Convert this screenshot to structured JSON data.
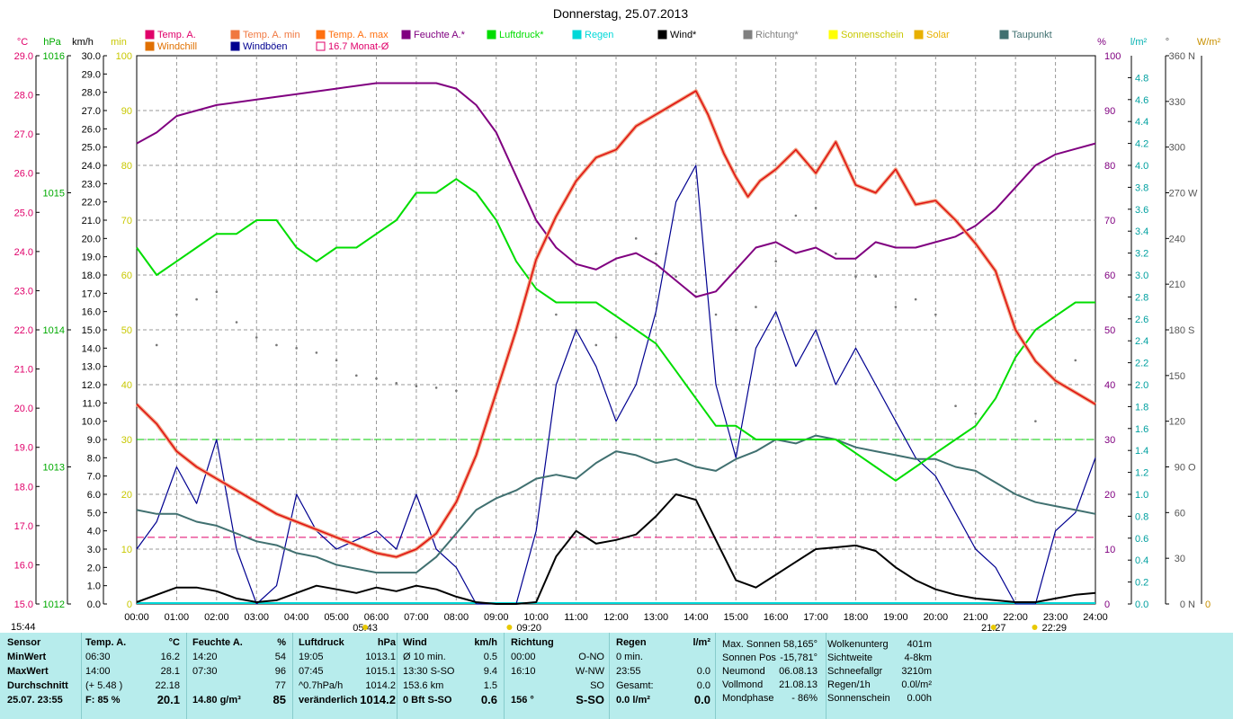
{
  "title": "Donnerstag, 25.07.2013",
  "legend": [
    {
      "label": "Temp. A.",
      "color": "#e0006a"
    },
    {
      "label": "Windchill",
      "color": "#e07000"
    },
    {
      "label": "Temp. A. min",
      "color": "#f07840"
    },
    {
      "label": "Windböen",
      "color": "#000090"
    },
    {
      "label": "Temp. A. max",
      "color": "#ff7010"
    },
    {
      "label": "16.7 Monat-Ø",
      "color": "#e0006a"
    },
    {
      "label": "Feuchte A.*",
      "color": "#800080"
    },
    {
      "label": "Luftdruck*",
      "color": "#00dd00"
    },
    {
      "label": "Regen",
      "color": "#00d8d8"
    },
    {
      "label": "Wind*",
      "color": "#000000"
    },
    {
      "label": "Richtung*",
      "color": "#808080"
    },
    {
      "label": "Sonnenschein",
      "color": "#ffff00"
    },
    {
      "label": "Solar",
      "color": "#e8b000"
    },
    {
      "label": "Taupunkt",
      "color": "#407070"
    }
  ],
  "axes": {
    "temp_unit": "°C",
    "press_unit": "hPa",
    "wind_unit": "km/h",
    "min_unit": "min",
    "hum_unit": "%",
    "rain_unit": "l/m²",
    "dir_unit": "°",
    "solar_unit": "W/m²",
    "temp_ticks": [
      "15.0",
      "16.0",
      "17.0",
      "18.0",
      "19.0",
      "20.0",
      "21.0",
      "22.0",
      "23.0",
      "24.0",
      "25.0",
      "26.0",
      "27.0",
      "28.0",
      "29.0"
    ],
    "press_ticks": [
      "1012",
      "1013",
      "1014",
      "1015",
      "1016"
    ],
    "wind_ticks": [
      "0.0",
      "1.0",
      "2.0",
      "3.0",
      "4.0",
      "5.0",
      "6.0",
      "7.0",
      "8.0",
      "9.0",
      "10.0",
      "11.0",
      "12.0",
      "13.0",
      "14.0",
      "15.0",
      "16.0",
      "17.0",
      "18.0",
      "19.0",
      "20.0",
      "21.0",
      "22.0",
      "23.0",
      "24.0",
      "25.0",
      "26.0",
      "27.0",
      "28.0",
      "29.0",
      "30.0"
    ],
    "min_ticks": [
      "0",
      "10",
      "20",
      "30",
      "40",
      "50",
      "60",
      "70",
      "80",
      "90",
      "100"
    ],
    "hum_ticks": [
      "0",
      "10",
      "20",
      "30",
      "40",
      "50",
      "60",
      "70",
      "80",
      "90",
      "100"
    ],
    "rain_ticks": [
      "0.0",
      "0.2",
      "0.4",
      "0.6",
      "0.8",
      "1.0",
      "1.2",
      "1.4",
      "1.6",
      "1.8",
      "2.0",
      "2.2",
      "2.4",
      "2.6",
      "2.8",
      "3.0",
      "3.2",
      "3.4",
      "3.6",
      "3.8",
      "4.0",
      "4.2",
      "4.4",
      "4.6",
      "4.8"
    ],
    "dir_ticks": [
      "0",
      "30",
      "60",
      "90",
      "120",
      "150",
      "180",
      "210",
      "240",
      "270",
      "300",
      "330",
      "360"
    ],
    "dir_labels": [
      "N",
      "",
      "",
      "O",
      "",
      "",
      "S",
      "",
      "",
      "W",
      "",
      "",
      "N"
    ],
    "solar_ticks": [
      "0"
    ],
    "x_ticks": [
      "00:00",
      "01:00",
      "02:00",
      "03:00",
      "04:00",
      "05:00",
      "06:00",
      "07:00",
      "08:00",
      "09:00",
      "10:00",
      "11:00",
      "12:00",
      "13:00",
      "14:00",
      "15:00",
      "16:00",
      "17:00",
      "18:00",
      "19:00",
      "20:00",
      "21:00",
      "22:00",
      "23:00",
      "24:00"
    ]
  },
  "sun_events": {
    "sunrise": "05:43",
    "sunset": "21:27",
    "moonrise": "09:20",
    "moonset": "22:29",
    "time_label": "15:44"
  },
  "chart_data": {
    "type": "line",
    "title": "Donnerstag, 25.07.2013",
    "x_range_hours": [
      0,
      24
    ],
    "series": [
      {
        "name": "Temp. A.",
        "unit": "°C",
        "ylim": [
          15,
          29
        ],
        "x": [
          0,
          0.5,
          1,
          1.5,
          2,
          3,
          3.5,
          4,
          4.5,
          5,
          5.5,
          6,
          6.5,
          7,
          7.5,
          8,
          8.5,
          9,
          9.5,
          10,
          10.5,
          11,
          11.5,
          12,
          12.5,
          13,
          13.5,
          14,
          14.3,
          14.7,
          15,
          15.3,
          15.6,
          16,
          16.5,
          17,
          17.5,
          18,
          18.5,
          19,
          19.5,
          20,
          20.5,
          21,
          21.5,
          22,
          22.5,
          23,
          23.5,
          24
        ],
        "values": [
          20.1,
          19.6,
          18.9,
          18.5,
          18.2,
          17.6,
          17.3,
          17.1,
          16.9,
          16.7,
          16.5,
          16.3,
          16.2,
          16.4,
          16.8,
          17.6,
          18.8,
          20.4,
          22.0,
          23.8,
          24.9,
          25.8,
          26.4,
          26.6,
          27.2,
          27.5,
          27.8,
          28.1,
          27.5,
          26.5,
          25.9,
          25.4,
          25.8,
          26.1,
          26.6,
          26.0,
          26.8,
          25.7,
          25.5,
          26.1,
          25.2,
          25.3,
          24.8,
          24.2,
          23.5,
          22.0,
          21.2,
          20.7,
          20.4,
          20.1
        ]
      },
      {
        "name": "Feuchte A.*",
        "unit": "%",
        "ylim": [
          0,
          100
        ],
        "x": [
          0,
          0.5,
          1,
          1.5,
          2,
          3,
          4,
          5,
          6,
          6.5,
          7,
          7.5,
          8,
          8.5,
          9,
          9.5,
          10,
          10.5,
          11,
          11.5,
          12,
          12.5,
          13,
          13.5,
          14,
          14.5,
          15,
          15.5,
          16,
          16.5,
          17,
          17.5,
          18,
          18.5,
          19,
          19.5,
          20,
          20.5,
          21,
          21.5,
          22,
          22.5,
          23,
          23.5,
          24
        ],
        "values": [
          84,
          86,
          89,
          90,
          91,
          92,
          93,
          94,
          95,
          95,
          95,
          95,
          94,
          91,
          86,
          78,
          70,
          65,
          62,
          61,
          63,
          64,
          62,
          59,
          56,
          57,
          61,
          65,
          66,
          64,
          65,
          63,
          63,
          66,
          65,
          65,
          66,
          67,
          69,
          72,
          76,
          80,
          82,
          83,
          84
        ]
      },
      {
        "name": "Luftdruck*",
        "unit": "hPa",
        "ylim": [
          1012,
          1016
        ],
        "x": [
          0,
          0.5,
          1,
          1.5,
          2,
          2.5,
          3,
          3.5,
          4,
          4.5,
          5,
          5.5,
          6,
          6.5,
          7,
          7.5,
          8,
          8.5,
          9,
          9.5,
          10,
          10.5,
          11,
          11.5,
          12,
          12.5,
          13,
          13.5,
          14,
          14.5,
          15,
          15.5,
          16,
          16.5,
          17,
          17.5,
          18,
          18.5,
          19,
          19.5,
          20,
          20.5,
          21,
          21.5,
          22,
          22.5,
          23,
          23.5,
          24
        ],
        "values": [
          1014.6,
          1014.4,
          1014.5,
          1014.6,
          1014.7,
          1014.7,
          1014.8,
          1014.8,
          1014.6,
          1014.5,
          1014.6,
          1014.6,
          1014.7,
          1014.8,
          1015.0,
          1015.0,
          1015.1,
          1015.0,
          1014.8,
          1014.5,
          1014.3,
          1014.2,
          1014.2,
          1014.2,
          1014.1,
          1014.0,
          1013.9,
          1013.7,
          1013.5,
          1013.3,
          1013.3,
          1013.2,
          1013.2,
          1013.2,
          1013.2,
          1013.2,
          1013.1,
          1013.0,
          1012.9,
          1013.0,
          1013.1,
          1013.2,
          1013.3,
          1013.5,
          1013.8,
          1014.0,
          1014.1,
          1014.2,
          1014.2
        ]
      },
      {
        "name": "Wind*",
        "unit": "km/h",
        "ylim": [
          0,
          30
        ],
        "x": [
          0,
          0.5,
          1,
          1.5,
          2,
          2.5,
          3,
          3.5,
          4,
          4.5,
          5,
          5.5,
          6,
          6.5,
          7,
          7.5,
          8,
          8.5,
          9,
          9.5,
          10,
          10.5,
          11,
          11.5,
          12,
          12.5,
          13,
          13.5,
          14,
          14.5,
          15,
          15.5,
          16,
          16.5,
          17,
          17.5,
          18,
          18.5,
          19,
          19.5,
          20,
          20.5,
          21,
          21.5,
          22,
          22.5,
          23,
          23.5,
          24
        ],
        "values": [
          0.1,
          0.5,
          0.9,
          0.9,
          0.7,
          0.3,
          0.1,
          0.2,
          0.6,
          1.0,
          0.8,
          0.6,
          0.9,
          0.7,
          1.0,
          0.8,
          0.4,
          0.1,
          0.0,
          0.0,
          0.1,
          2.6,
          4.0,
          3.3,
          3.5,
          3.8,
          4.8,
          6.0,
          5.7,
          3.5,
          1.3,
          0.9,
          1.6,
          2.3,
          3.0,
          3.1,
          3.2,
          2.9,
          2.0,
          1.3,
          0.8,
          0.5,
          0.3,
          0.2,
          0.1,
          0.1,
          0.3,
          0.5,
          0.6
        ]
      },
      {
        "name": "Windböen",
        "unit": "km/h",
        "ylim": [
          0,
          30
        ],
        "x": [
          0,
          0.5,
          1,
          1.5,
          2,
          2.5,
          3,
          3.5,
          4,
          4.5,
          5,
          5.5,
          6,
          6.5,
          7,
          7.5,
          8,
          8.5,
          9,
          9.5,
          10,
          10.5,
          11,
          11.5,
          12,
          12.5,
          13,
          13.5,
          14,
          14.5,
          15,
          15.5,
          16,
          16.5,
          17,
          17.5,
          18,
          18.5,
          19,
          19.5,
          20,
          20.5,
          21,
          21.5,
          22,
          22.5,
          23,
          23.5,
          24
        ],
        "values": [
          3.0,
          4.5,
          7.5,
          5.5,
          9.0,
          3.0,
          0.0,
          1.0,
          6.0,
          4.0,
          3.0,
          3.5,
          4.0,
          3.0,
          6.0,
          3.0,
          2.0,
          0.0,
          0.0,
          0.0,
          4.0,
          12.0,
          15.0,
          13.0,
          10.0,
          12.0,
          16.0,
          22.0,
          24.0,
          12.0,
          8.0,
          14.0,
          16.0,
          13.0,
          15.0,
          12.0,
          14.0,
          12.0,
          10.0,
          8.0,
          7.0,
          5.0,
          3.0,
          2.0,
          0.0,
          0.0,
          4.0,
          5.0,
          8.0
        ]
      },
      {
        "name": "Taupunkt",
        "unit": "°C",
        "ylim": [
          15,
          29
        ],
        "x": [
          0,
          0.5,
          1,
          1.5,
          2,
          2.5,
          3,
          3.5,
          4,
          4.5,
          5,
          5.5,
          6,
          6.5,
          7,
          7.5,
          8,
          8.5,
          9,
          9.5,
          10,
          10.5,
          11,
          11.5,
          12,
          12.5,
          13,
          13.5,
          14,
          14.5,
          15,
          15.5,
          16,
          16.5,
          17,
          17.5,
          18,
          18.5,
          19,
          19.5,
          20,
          20.5,
          21,
          21.5,
          22,
          22.5,
          23,
          23.5,
          24
        ],
        "values": [
          17.4,
          17.3,
          17.3,
          17.1,
          17.0,
          16.8,
          16.6,
          16.5,
          16.3,
          16.2,
          16.0,
          15.9,
          15.8,
          15.8,
          15.8,
          16.2,
          16.8,
          17.4,
          17.7,
          17.9,
          18.2,
          18.3,
          18.2,
          18.6,
          18.9,
          18.8,
          18.6,
          18.7,
          18.5,
          18.4,
          18.7,
          18.9,
          19.2,
          19.1,
          19.3,
          19.2,
          19.0,
          18.9,
          18.8,
          18.7,
          18.7,
          18.5,
          18.4,
          18.1,
          17.8,
          17.6,
          17.5,
          17.4,
          17.3
        ]
      },
      {
        "name": "Richtung*",
        "unit": "°",
        "ylim": [
          0,
          360
        ],
        "x": [
          0.5,
          1,
          1.5,
          2,
          2.5,
          3,
          3.5,
          4,
          4.5,
          5,
          5.5,
          6,
          6.5,
          7,
          7.5,
          8,
          10.5,
          11,
          11.5,
          12,
          12.5,
          13,
          13.5,
          14,
          14.5,
          15,
          15.5,
          16,
          16.5,
          17,
          17.5,
          18,
          18.5,
          19,
          19.5,
          20,
          20.5,
          21,
          22.5,
          23,
          23.5
        ],
        "values": [
          170,
          190,
          200,
          205,
          185,
          175,
          170,
          168,
          165,
          160,
          150,
          148,
          145,
          143,
          142,
          140,
          190,
          180,
          170,
          175,
          240,
          230,
          215,
          205,
          190,
          180,
          195,
          225,
          255,
          260,
          230,
          215,
          215,
          195,
          200,
          190,
          130,
          125,
          120,
          145,
          160
        ]
      },
      {
        "name": "16.7 Monat-Ø",
        "unit": "°C",
        "constant": 16.7
      },
      {
        "name": "Regen",
        "unit": "l/m²",
        "constant": 0.0
      }
    ],
    "reference_line_hum": 30
  },
  "panel": {
    "sensor": {
      "h": "Sensor",
      "rows": [
        "MinWert",
        "MaxWert",
        "Durchschnitt",
        "25.07. 23:55"
      ]
    },
    "temp": {
      "h": "Temp. A.",
      "u": "°C",
      "rows": [
        [
          "06:30",
          "16.2"
        ],
        [
          "14:00",
          "28.1"
        ],
        [
          "(+ 5.48 )",
          "22.18"
        ],
        [
          "F: 85 %",
          "20.1"
        ]
      ]
    },
    "hum": {
      "h": "Feuchte A.",
      "u": "%",
      "rows": [
        [
          "14:20",
          "54"
        ],
        [
          "07:30",
          "96"
        ],
        [
          "",
          "77"
        ],
        [
          "14.80 g/m³",
          "85"
        ]
      ]
    },
    "press": {
      "h": "Luftdruck",
      "u": "hPa",
      "rows": [
        [
          "19:05",
          "1013.1"
        ],
        [
          "07:45",
          "1015.1"
        ],
        [
          "^0.7hPa/h",
          "1014.2"
        ],
        [
          "veränderlich",
          "1014.2"
        ]
      ]
    },
    "wind": {
      "h": "Wind",
      "u": "km/h",
      "rows": [
        [
          "Ø 10 min.",
          "0.5"
        ],
        [
          "13:30   S-SO",
          "9.4"
        ],
        [
          "153.6 km",
          "1.5"
        ],
        [
          "0 Bft S-SO",
          "0.6"
        ]
      ]
    },
    "dir": {
      "h": "Richtung",
      "rows": [
        [
          "00:00",
          "O-NO"
        ],
        [
          "16:10",
          "W-NW"
        ],
        [
          "",
          "SO"
        ],
        [
          "156 °",
          "S-SO"
        ]
      ]
    },
    "rain": {
      "h": "Regen",
      "u": "l/m²",
      "rows": [
        [
          "0 min.",
          ""
        ],
        [
          "23:55",
          "0.0"
        ],
        [
          "Gesamt:",
          "0.0"
        ],
        [
          "0.0 l/m²",
          "0.0"
        ]
      ]
    },
    "astro": {
      "rows": [
        [
          "Max. Sonnen",
          "58,165°"
        ],
        [
          "Sonnen Pos",
          "-15,781°"
        ],
        [
          "Neumond",
          "06.08.13"
        ],
        [
          "Vollmond",
          "21.08.13"
        ],
        [
          "Mondphase",
          "- 86%"
        ]
      ]
    },
    "misc": {
      "rows": [
        [
          "Wolkenunterg",
          "401m"
        ],
        [
          "Sichtweite",
          "4-8km"
        ],
        [
          "Schneefallgr",
          "3210m"
        ],
        [
          "Regen/1h",
          "0.0l/m²"
        ],
        [
          "Sonnenschein",
          "0.00h"
        ]
      ]
    }
  }
}
